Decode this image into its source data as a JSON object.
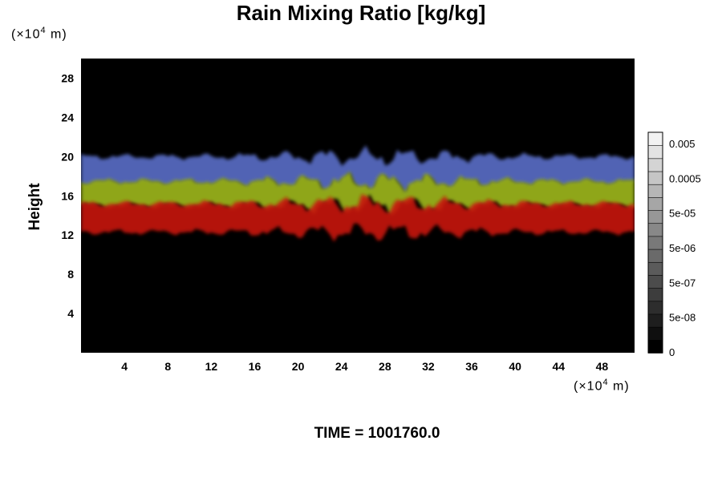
{
  "chart_data": {
    "type": "heatmap",
    "title": "Rain Mixing Ratio [kg/kg]",
    "ylabel": "Height",
    "xlabel": "",
    "x_unit_prefix": "(×10",
    "x_unit_exp": "4",
    "x_unit_suffix": " m)",
    "y_unit_prefix": "(×10",
    "y_unit_exp": "4",
    "y_unit_suffix": " m)",
    "xlim": [
      0,
      51
    ],
    "ylim": [
      0,
      30
    ],
    "x_ticks": [
      4,
      8,
      12,
      16,
      20,
      24,
      28,
      32,
      36,
      40,
      44,
      48
    ],
    "y_ticks": [
      4,
      8,
      12,
      16,
      20,
      24,
      28
    ],
    "x_tick_labels": [
      "4",
      "8",
      "12",
      "16",
      "20",
      "24",
      "28",
      "32",
      "36",
      "40",
      "44",
      "48"
    ],
    "y_tick_labels": [
      "4",
      "8",
      "12",
      "16",
      "20",
      "24",
      "28"
    ],
    "background_color": "#000000",
    "bands": [
      {
        "layer": "upper",
        "color": "#5a6ec8",
        "y_bottom": 17.3,
        "y_top": 20.0
      },
      {
        "layer": "middle",
        "color": "#9fb81e",
        "y_bottom": 15.0,
        "y_top": 17.5
      },
      {
        "layer": "lower",
        "color": "#c8140a",
        "y_bottom": 12.3,
        "y_top": 15.2
      }
    ],
    "colorbar": {
      "tick_labels": [
        "0.005",
        "0.0005",
        "5e-05",
        "5e-06",
        "5e-07",
        "5e-08",
        "0"
      ]
    },
    "time_label": "TIME = 1001760.0"
  }
}
